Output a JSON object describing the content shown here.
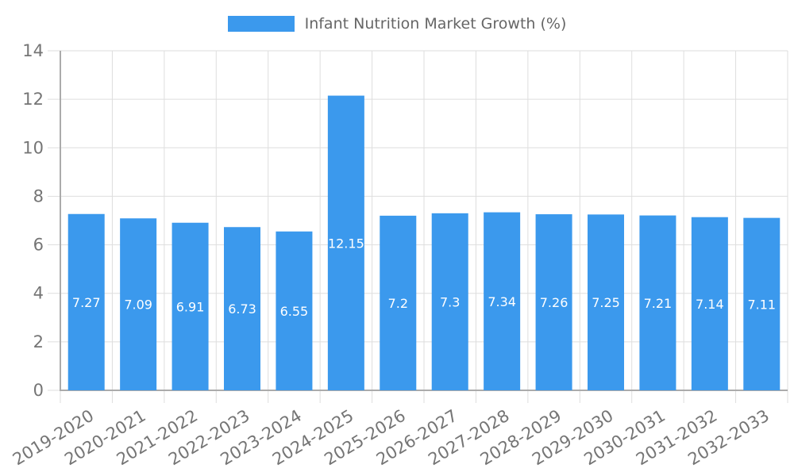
{
  "window": {
    "background": "#ffffff"
  },
  "legend": {
    "position": "top"
  },
  "chart_data": {
    "type": "bar",
    "title": "Infant Nutrition Market Growth (%)",
    "categories": [
      "2019-2020",
      "2020-2021",
      "2021-2022",
      "2022-2023",
      "2023-2024",
      "2024-2025",
      "2025-2026",
      "2026-2027",
      "2027-2028",
      "2028-2029",
      "2029-2030",
      "2030-2031",
      "2031-2032",
      "2032-2033"
    ],
    "values": [
      7.27,
      7.09,
      6.91,
      6.73,
      6.55,
      12.15,
      7.2,
      7.3,
      7.34,
      7.26,
      7.25,
      7.21,
      7.14,
      7.11
    ],
    "value_labels": [
      "7.27",
      "7.09",
      "6.91",
      "6.73",
      "6.55",
      "12.15",
      "7.2",
      "7.3",
      "7.34",
      "7.26",
      "7.25",
      "7.21",
      "7.14",
      "7.11"
    ],
    "xlabel": "",
    "ylabel": "",
    "ylim": [
      0,
      14
    ],
    "yticks": [
      0,
      2,
      4,
      6,
      8,
      10,
      12,
      14
    ],
    "grid": true,
    "legend_position": "top",
    "value_labels_position": "inside-center",
    "x_label_rotation_deg": -31,
    "colors": {
      "bar": "#3B99ED",
      "value_label": "#FFFFFF",
      "grid_line": "#DEDEDE",
      "axis_line": "#ABABAB",
      "tick_label": "#757575",
      "title_text": "#666666"
    }
  }
}
